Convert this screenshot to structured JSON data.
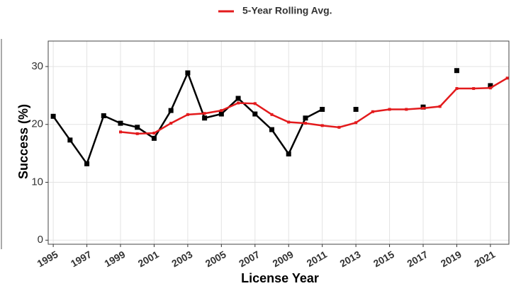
{
  "chart_data": {
    "type": "line",
    "x_label": "License Year",
    "y_label": "Success (%)",
    "x": [
      1995,
      1996,
      1997,
      1998,
      1999,
      2000,
      2001,
      2002,
      2003,
      2004,
      2005,
      2006,
      2007,
      2008,
      2009,
      2010,
      2011,
      2012,
      2013,
      2014,
      2015,
      2016,
      2017,
      2018,
      2019,
      2020,
      2021,
      2022
    ],
    "series": [
      {
        "color": "#000000",
        "values": [
          21.4,
          17.3,
          13.2,
          21.5,
          20.2,
          19.5,
          17.6,
          22.4,
          28.9,
          21.1,
          21.8,
          24.5,
          21.8,
          19.1,
          14.9,
          21.1,
          22.6,
          null,
          22.6,
          null,
          null,
          null,
          23.0,
          null,
          29.3,
          null,
          26.7,
          null
        ]
      },
      {
        "name": "5-Year Rolling Avg.",
        "color": "#e31a1c",
        "values": [
          null,
          null,
          null,
          null,
          18.7,
          18.4,
          18.5,
          20.2,
          21.7,
          21.9,
          22.4,
          23.7,
          23.6,
          21.7,
          20.4,
          20.2,
          19.8,
          19.5,
          20.3,
          22.2,
          22.6,
          22.6,
          22.8,
          23.1,
          26.2,
          26.2,
          26.3,
          28.0
        ]
      }
    ],
    "xlim": [
      1994.7,
      2022.1
    ],
    "ylim": [
      -0.7,
      34.4
    ],
    "xticks": [
      1995,
      1997,
      1999,
      2001,
      2003,
      2005,
      2007,
      2009,
      2011,
      2013,
      2015,
      2017,
      2019,
      2021
    ],
    "yticks": [
      0,
      10,
      20,
      30
    ],
    "grid": true,
    "legend": "top"
  }
}
